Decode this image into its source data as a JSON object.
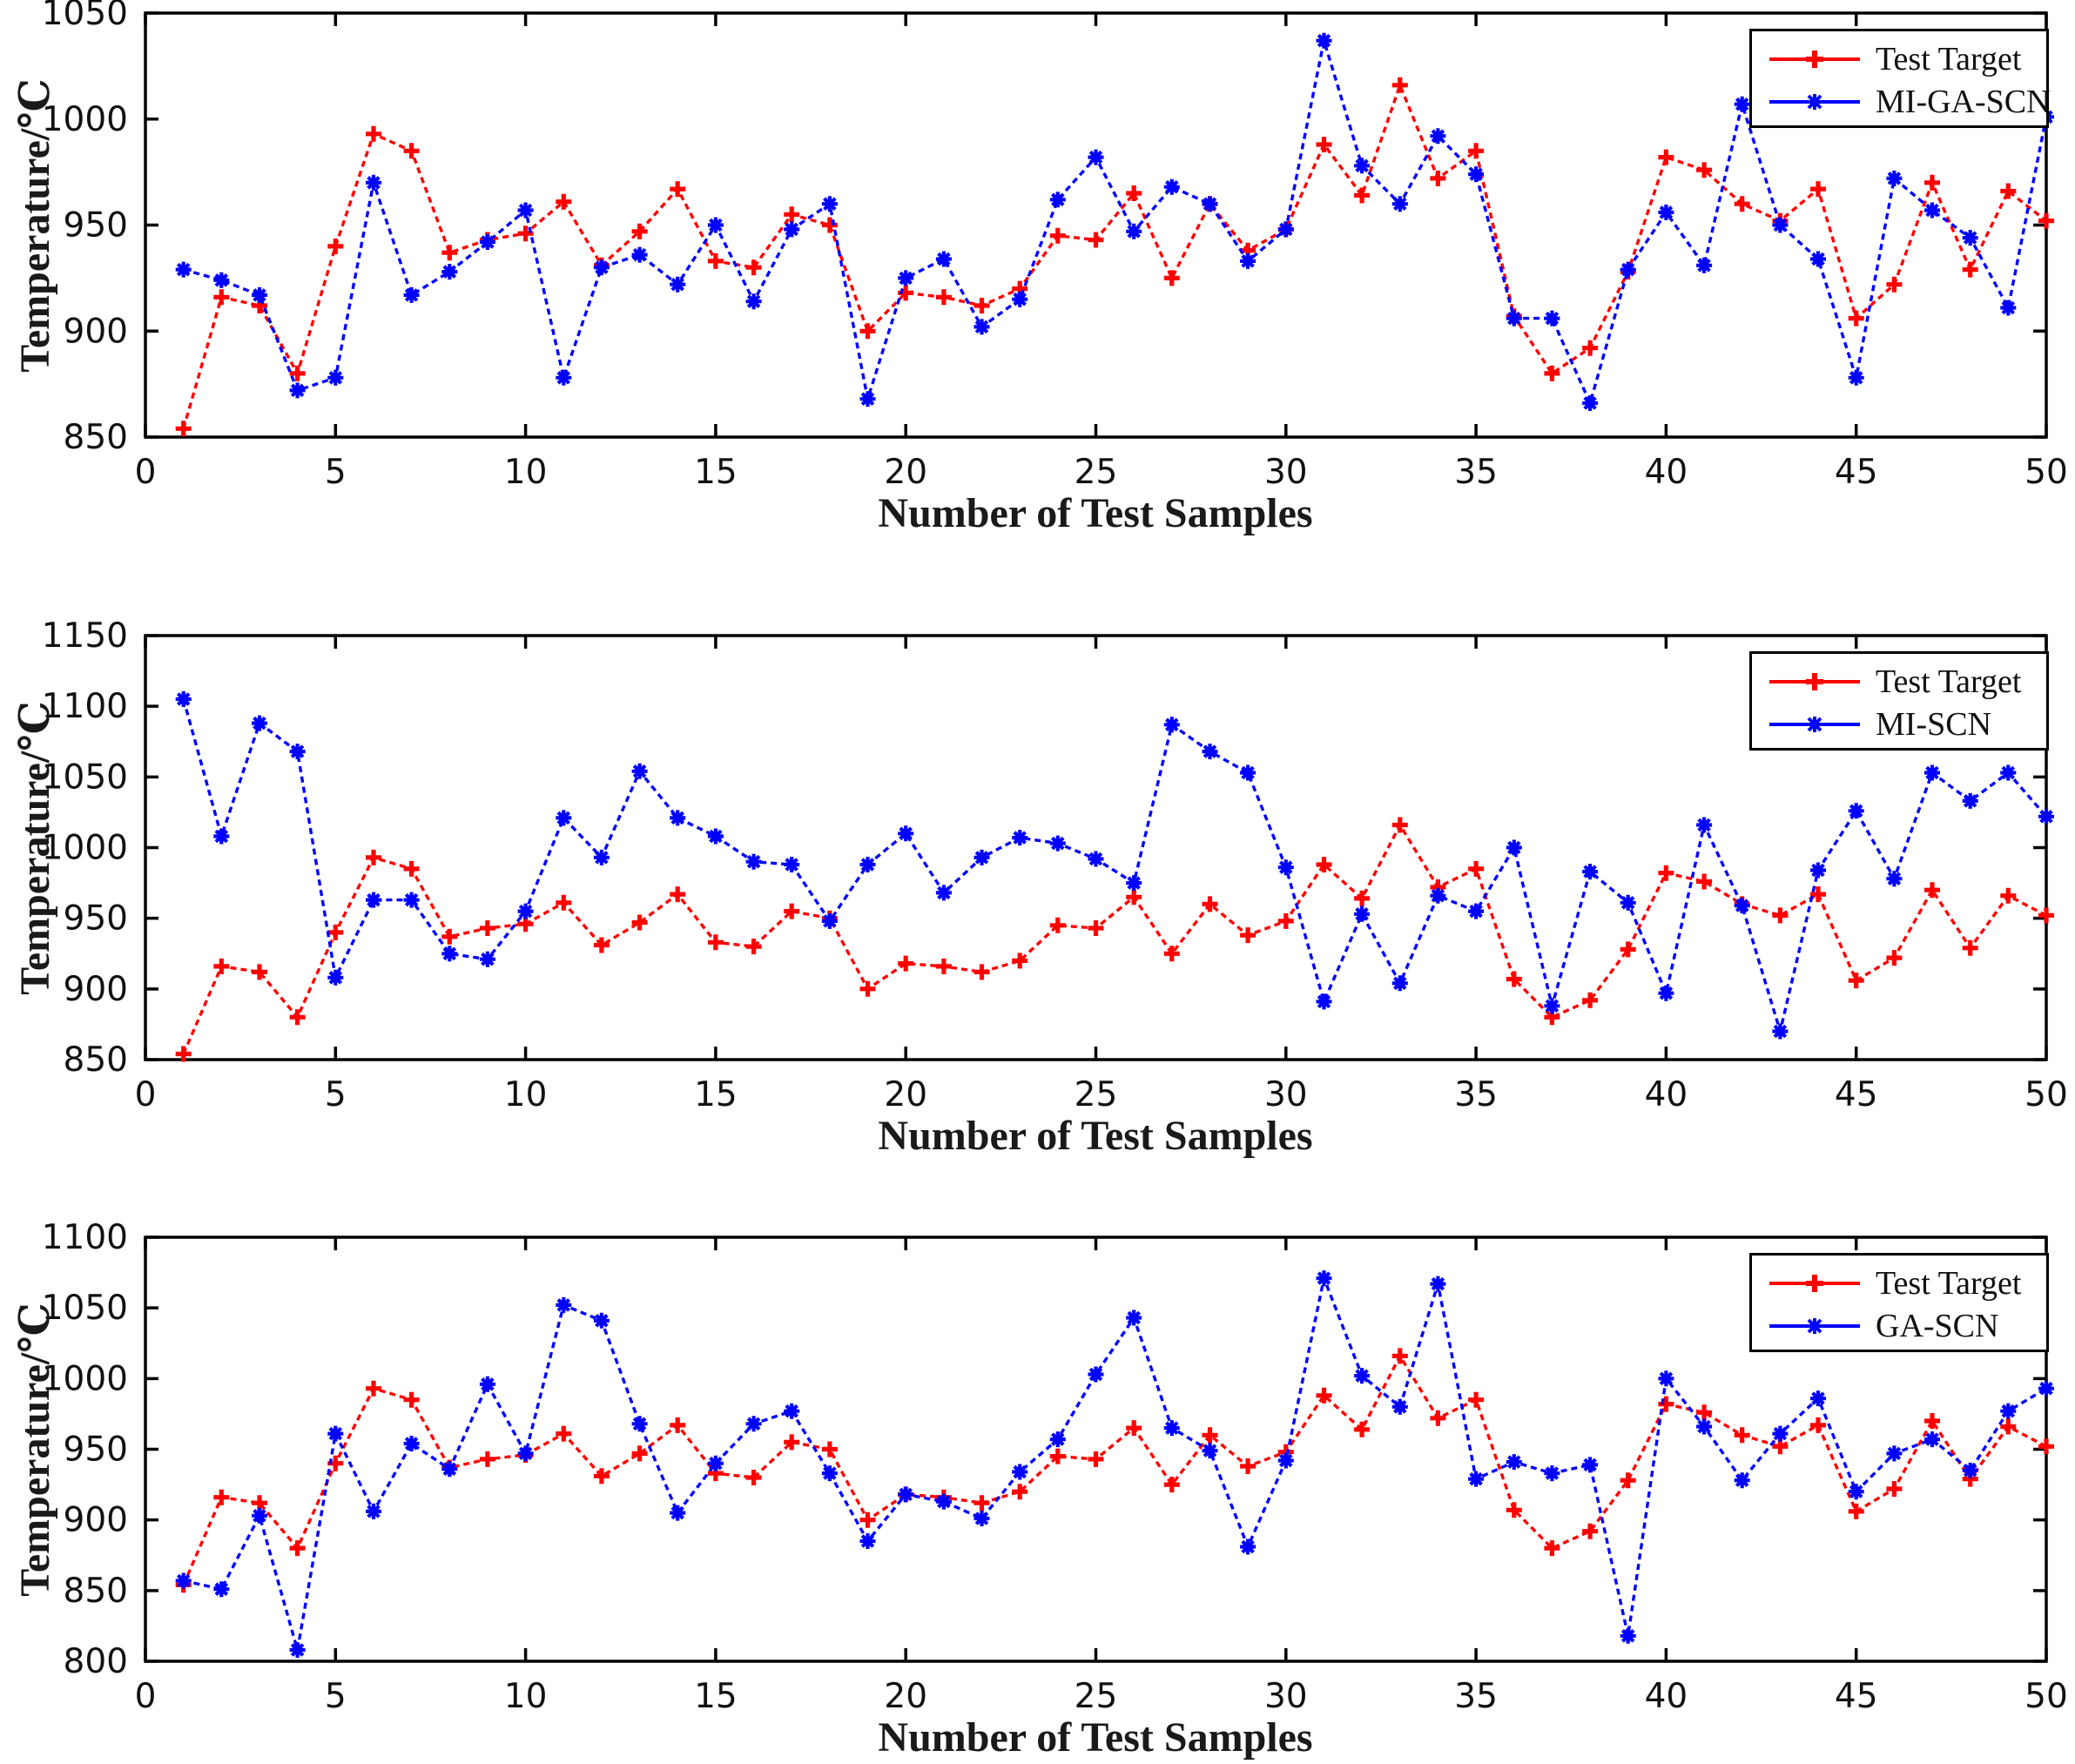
{
  "figure": {
    "background": "#ffffff"
  },
  "colors": {
    "target": "#ff0000",
    "model": "#0000ff",
    "axis": "#000000"
  },
  "chart_data": [
    {
      "type": "line",
      "panel": "top",
      "xlabel": "Number of Test Samples",
      "ylabel": "Temperature/℃",
      "legend": [
        "Test Target",
        "MI-GA-SCN"
      ],
      "legend_position": "top-right",
      "grid": false,
      "xlim": [
        0,
        50
      ],
      "ylim": [
        850,
        1050
      ],
      "xticks": [
        0,
        5,
        10,
        15,
        20,
        25,
        30,
        35,
        40,
        45,
        50
      ],
      "yticks": [
        850,
        900,
        950,
        1000,
        1050
      ],
      "x_start": 1,
      "series": [
        {
          "name": "Test Target",
          "key": "test-target",
          "color": "target",
          "marker": "plus",
          "linestyle": "dashed",
          "values": [
            854,
            916,
            912,
            880,
            940,
            993,
            985,
            937,
            943,
            946,
            961,
            931,
            947,
            967,
            933,
            930,
            955,
            950,
            900,
            918,
            916,
            912,
            920,
            945,
            943,
            965,
            925,
            960,
            938,
            948,
            988,
            964,
            1016,
            972,
            985,
            907,
            880,
            892,
            928,
            982,
            976,
            960,
            952,
            967,
            906,
            922,
            970,
            929,
            966,
            952
          ]
        },
        {
          "name": "MI-GA-SCN",
          "key": "mi-ga-scn",
          "color": "model",
          "marker": "asterisk",
          "linestyle": "dashed",
          "values": [
            929,
            924,
            917,
            872,
            878,
            970,
            917,
            928,
            942,
            957,
            878,
            930,
            936,
            922,
            950,
            914,
            948,
            960,
            868,
            925,
            934,
            902,
            915,
            962,
            982,
            947,
            968,
            960,
            933,
            948,
            1037,
            978,
            960,
            992,
            974,
            906,
            906,
            866,
            929,
            956,
            931,
            1007,
            950,
            934,
            878,
            972,
            957,
            944,
            911,
            1001
          ]
        }
      ]
    },
    {
      "type": "line",
      "panel": "middle",
      "xlabel": "Number of Test Samples",
      "ylabel": "Temperature/℃",
      "legend": [
        "Test Target",
        "MI-SCN"
      ],
      "legend_position": "top-right",
      "grid": false,
      "xlim": [
        0,
        50
      ],
      "ylim": [
        850,
        1150
      ],
      "xticks": [
        0,
        5,
        10,
        15,
        20,
        25,
        30,
        35,
        40,
        45,
        50
      ],
      "yticks": [
        850,
        900,
        950,
        1000,
        1050,
        1100,
        1150
      ],
      "x_start": 1,
      "series": [
        {
          "name": "Test Target",
          "key": "test-target",
          "color": "target",
          "marker": "plus",
          "linestyle": "dashed",
          "values": [
            854,
            916,
            912,
            880,
            940,
            993,
            985,
            937,
            943,
            946,
            961,
            931,
            947,
            967,
            933,
            930,
            955,
            950,
            900,
            918,
            916,
            912,
            920,
            945,
            943,
            965,
            925,
            960,
            938,
            948,
            988,
            964,
            1016,
            972,
            985,
            907,
            880,
            892,
            928,
            982,
            976,
            960,
            952,
            967,
            906,
            922,
            970,
            929,
            966,
            952
          ]
        },
        {
          "name": "MI-SCN",
          "key": "mi-scn",
          "color": "model",
          "marker": "asterisk",
          "linestyle": "dashed",
          "values": [
            1105,
            1008,
            1088,
            1068,
            908,
            963,
            963,
            925,
            921,
            955,
            1021,
            993,
            1054,
            1021,
            1008,
            990,
            988,
            948,
            988,
            1010,
            968,
            993,
            1007,
            1003,
            992,
            975,
            1087,
            1068,
            1053,
            986,
            891,
            953,
            904,
            966,
            955,
            1000,
            888,
            983,
            961,
            897,
            1016,
            959,
            870,
            984,
            1026,
            978,
            1053,
            1033,
            1053,
            1022
          ]
        }
      ]
    },
    {
      "type": "line",
      "panel": "bottom",
      "xlabel": "Number of Test Samples",
      "ylabel": "Temperature/℃",
      "legend": [
        "Test Target",
        "GA-SCN"
      ],
      "legend_position": "top-right",
      "grid": false,
      "xlim": [
        0,
        50
      ],
      "ylim": [
        800,
        1100
      ],
      "xticks": [
        0,
        5,
        10,
        15,
        20,
        25,
        30,
        35,
        40,
        45,
        50
      ],
      "yticks": [
        800,
        850,
        900,
        950,
        1000,
        1050,
        1100
      ],
      "x_start": 1,
      "series": [
        {
          "name": "Test Target",
          "key": "test-target",
          "color": "target",
          "marker": "plus",
          "linestyle": "dashed",
          "values": [
            854,
            916,
            912,
            880,
            940,
            993,
            985,
            937,
            943,
            946,
            961,
            931,
            947,
            967,
            933,
            930,
            955,
            950,
            900,
            918,
            916,
            912,
            920,
            945,
            943,
            965,
            925,
            960,
            938,
            948,
            988,
            964,
            1016,
            972,
            985,
            907,
            880,
            892,
            928,
            982,
            976,
            960,
            952,
            967,
            906,
            922,
            970,
            929,
            966,
            952
          ]
        },
        {
          "name": "GA-SCN",
          "key": "ga-scn",
          "color": "model",
          "marker": "asterisk",
          "linestyle": "dashed",
          "values": [
            857,
            851,
            903,
            808,
            961,
            906,
            954,
            936,
            996,
            947,
            1052,
            1041,
            968,
            905,
            940,
            968,
            977,
            933,
            885,
            918,
            913,
            901,
            934,
            957,
            1003,
            1043,
            965,
            949,
            881,
            942,
            1071,
            1002,
            980,
            1067,
            929,
            941,
            933,
            939,
            818,
            1000,
            966,
            928,
            961,
            986,
            920,
            947,
            957,
            935,
            977,
            993
          ]
        }
      ]
    }
  ]
}
